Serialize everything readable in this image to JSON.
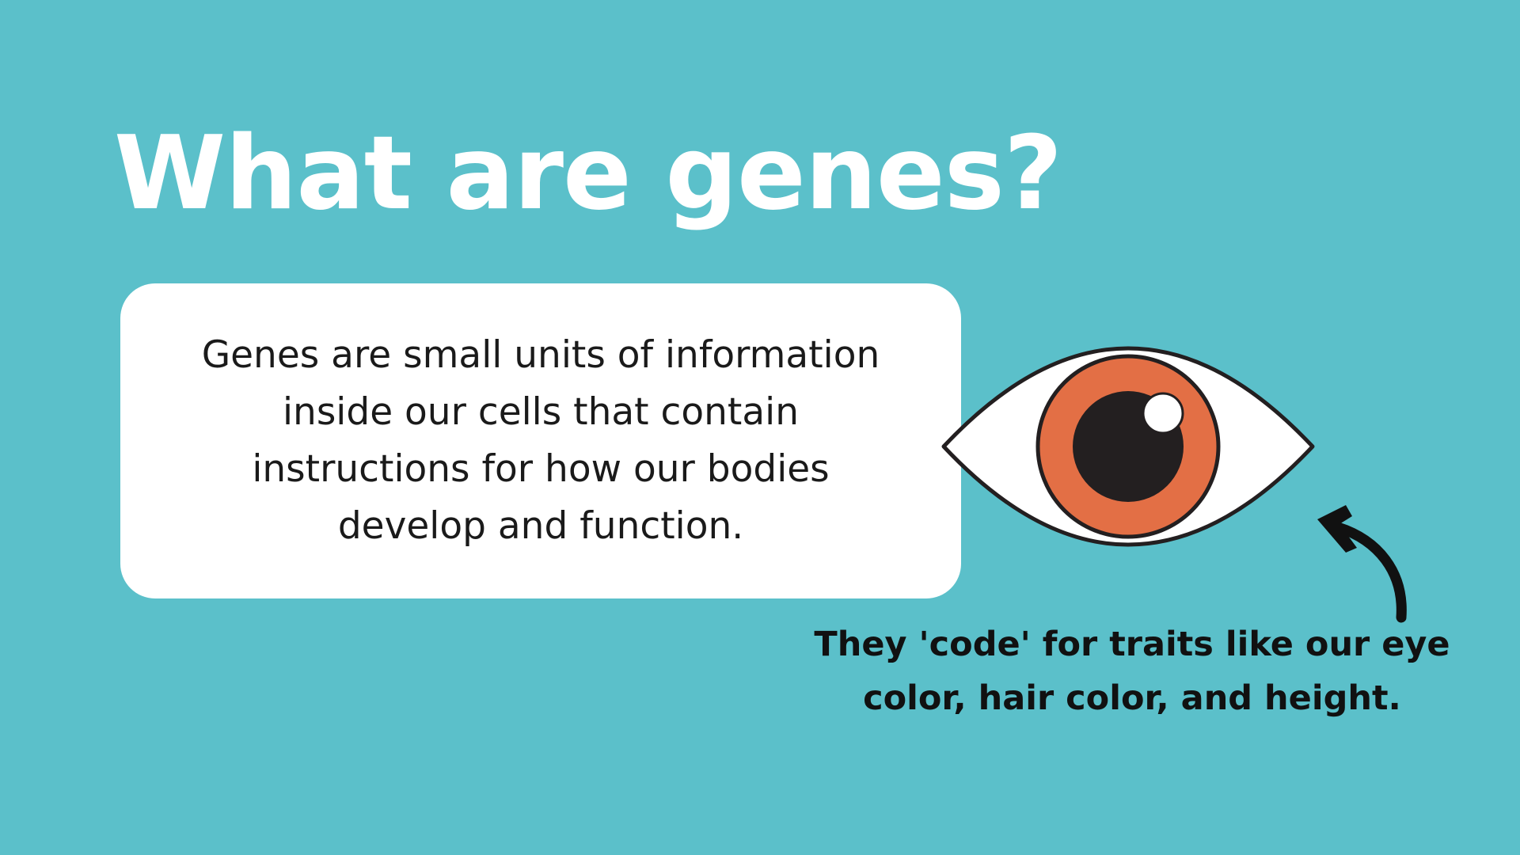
{
  "slide": {
    "title": "What are genes?",
    "body_text": "Genes are small units of information inside our cells that contain instructions for how our bodies develop and function.",
    "caption": "They 'code' for traits like our eye color, hair color, and height."
  },
  "illustration": {
    "eye_icon": "eye-icon",
    "arrow_icon": "curved-arrow-icon",
    "colors": {
      "background": "#5BC0CA",
      "iris": "#E36F45",
      "pupil": "#231F20",
      "sclera": "#FFFFFF",
      "outline": "#231F20"
    }
  }
}
